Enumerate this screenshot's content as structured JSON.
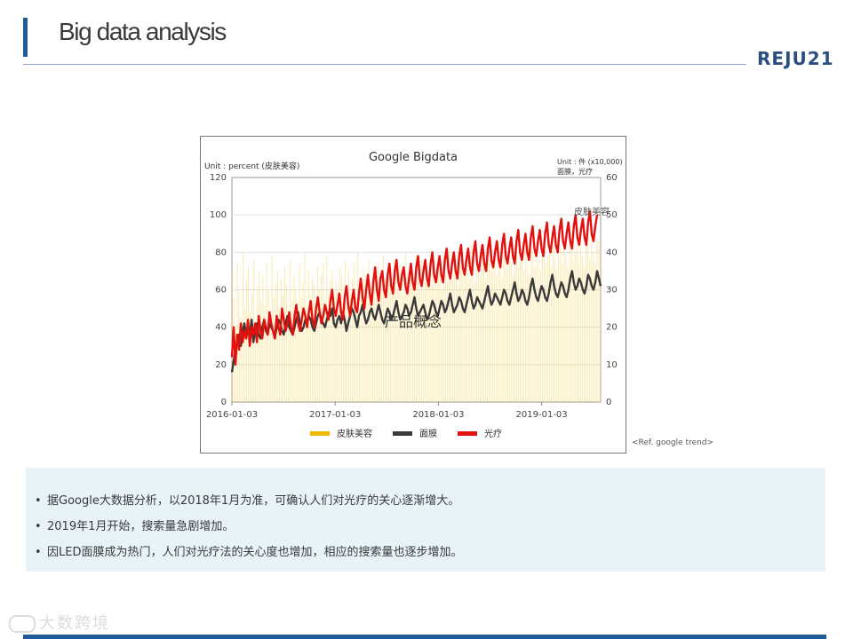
{
  "page": {
    "title": "Big data analysis",
    "logo": "REJU21",
    "ref_note": "<Ref. google trend>",
    "watermark": "大数跨境",
    "overlay_text": "产品概念"
  },
  "bullets": [
    "据Google大数据分析，以2018年1月为准，可确认人们对光疗的关心逐渐增大。",
    "2019年1月开始，搜索量急剧增加。",
    "因LED面膜成为热门，人们对光疗法的关心度也增加，相应的搜索量也逐步增加。"
  ],
  "chart_data": {
    "type": "bar+line",
    "title": "Google Bigdata",
    "left_unit": "Unit : percent (皮肤美容)",
    "right_unit_line1": "Unit : 件 (x10,000)",
    "right_unit_line2": "面膜，光疗",
    "annotation": "皮肤美容",
    "x_ticks": [
      "2016-01-03",
      "2017-01-03",
      "2018-01-03",
      "2019-01-03"
    ],
    "y_left_ticks": [
      "0",
      "20",
      "40",
      "60",
      "80",
      "100",
      "120"
    ],
    "y_right_ticks": [
      "0",
      "10",
      "20",
      "30",
      "40",
      "50",
      "60"
    ],
    "ylim_left": [
      0,
      120
    ],
    "ylim_right": [
      0,
      60
    ],
    "legend": [
      {
        "name": "皮肤美容",
        "color": "#f5b800"
      },
      {
        "name": "面膜",
        "color": "#3a3a3a"
      },
      {
        "name": "光疗",
        "color": "#e31010"
      }
    ],
    "series": [
      {
        "name": "面膜",
        "axis": "right",
        "color": "#3a3a3a",
        "values": [
          8,
          11,
          14,
          16,
          18,
          15,
          19,
          21,
          17,
          20,
          18,
          22,
          16,
          19,
          21,
          18,
          17,
          20,
          22,
          19,
          18,
          21,
          20,
          19,
          17,
          20,
          22,
          21,
          19,
          18,
          21,
          23,
          20,
          19,
          18,
          20,
          22,
          24,
          21,
          19,
          20,
          22,
          21,
          23,
          22,
          20,
          19,
          21,
          23,
          24,
          22,
          21,
          20,
          22,
          24,
          23,
          25,
          21,
          20,
          22,
          23,
          21,
          24,
          22,
          19,
          21,
          23,
          25,
          24,
          22,
          20,
          23,
          24,
          26,
          23,
          21,
          22,
          24,
          25,
          23,
          22,
          24,
          26,
          24,
          22,
          21,
          23,
          25,
          24,
          22,
          23,
          25,
          27,
          24,
          22,
          23,
          24,
          26,
          25,
          23,
          24,
          26,
          28,
          25,
          23,
          24,
          25,
          26,
          24,
          22,
          23,
          25,
          27,
          26,
          24,
          23,
          25,
          27,
          26,
          24,
          25,
          27,
          29,
          26,
          24,
          25,
          26,
          28,
          27,
          25,
          24,
          26,
          28,
          30,
          27,
          25,
          26,
          28,
          27,
          26,
          25,
          27,
          29,
          31,
          28,
          26,
          27,
          29,
          28,
          27,
          26,
          28,
          30,
          29,
          27,
          26,
          28,
          30,
          32,
          29,
          27,
          28,
          30,
          29,
          27,
          26,
          28,
          31,
          33,
          30,
          28,
          27,
          29,
          31,
          30,
          28,
          27,
          29,
          32,
          34,
          31,
          29,
          28,
          30,
          32,
          31,
          29,
          28,
          30,
          33,
          35,
          32,
          30,
          31,
          33,
          32,
          30,
          29,
          31,
          34,
          33,
          31,
          30,
          32,
          35,
          33,
          31
        ]
      },
      {
        "name": "光疗",
        "axis": "right",
        "color": "#e31010",
        "values": [
          12,
          20,
          10,
          18,
          14,
          21,
          16,
          19,
          17,
          22,
          15,
          20,
          18,
          21,
          16,
          23,
          19,
          17,
          22,
          20,
          18,
          24,
          21,
          19,
          17,
          23,
          20,
          18,
          25,
          22,
          19,
          21,
          24,
          20,
          18,
          23,
          26,
          21,
          19,
          22,
          25,
          23,
          20,
          24,
          27,
          22,
          20,
          25,
          28,
          24,
          21,
          23,
          26,
          24,
          22,
          27,
          30,
          25,
          23,
          26,
          29,
          24,
          22,
          28,
          31,
          26,
          23,
          27,
          30,
          25,
          24,
          29,
          33,
          28,
          25,
          30,
          34,
          29,
          26,
          32,
          36,
          30,
          27,
          33,
          35,
          30,
          28,
          34,
          37,
          31,
          29,
          35,
          38,
          32,
          30,
          34,
          36,
          31,
          29,
          33,
          37,
          32,
          30,
          36,
          39,
          33,
          31,
          35,
          38,
          33,
          31,
          37,
          40,
          34,
          32,
          36,
          39,
          34,
          32,
          38,
          41,
          35,
          33,
          37,
          40,
          35,
          33,
          39,
          42,
          36,
          34,
          38,
          41,
          36,
          34,
          40,
          43,
          37,
          35,
          39,
          42,
          37,
          35,
          41,
          44,
          38,
          36,
          40,
          43,
          38,
          36,
          42,
          45,
          39,
          37,
          41,
          44,
          39,
          37,
          43,
          46,
          40,
          38,
          42,
          45,
          40,
          38,
          44,
          47,
          41,
          39,
          43,
          46,
          41,
          39,
          45,
          48,
          42,
          40,
          44,
          47,
          42,
          40,
          46,
          49,
          43,
          41,
          45,
          48,
          43,
          41,
          47,
          50,
          44,
          42,
          46,
          49,
          44,
          42,
          48,
          51,
          45,
          43,
          47,
          50
        ]
      },
      {
        "name": "皮肤美容",
        "axis": "left",
        "color": "#f5b800",
        "style": "thin-bars",
        "values": [
          70,
          55,
          40,
          75,
          60,
          45,
          80,
          50,
          65,
          72,
          48,
          58,
          76,
          42,
          62,
          70,
          54,
          68,
          52,
          74,
          60,
          46,
          78,
          56,
          64,
          70,
          50,
          66,
          58,
          72,
          62,
          48,
          76,
          54,
          68,
          60,
          50,
          74,
          56,
          64,
          80,
          52,
          70,
          58,
          66,
          62,
          50,
          72,
          60,
          68,
          74,
          54,
          78,
          58,
          66,
          70,
          56,
          64,
          60,
          72,
          68,
          52,
          76,
          62,
          70,
          58,
          66,
          74,
          56,
          80,
          64,
          60,
          72,
          66,
          58,
          76,
          62,
          70,
          68,
          56,
          74,
          64,
          60,
          78,
          66,
          58,
          72,
          68,
          62,
          76,
          70,
          60,
          74,
          66,
          58,
          80,
          68,
          62,
          72,
          70,
          64,
          78,
          66,
          60,
          76,
          72,
          64,
          70,
          68,
          62,
          80,
          70,
          66,
          74,
          72,
          60,
          78,
          68,
          64,
          82,
          72,
          66,
          76,
          70,
          62,
          80,
          74,
          68,
          72,
          76,
          66,
          84,
          70,
          64,
          78,
          74,
          68,
          82,
          72,
          66,
          80,
          76,
          70,
          74,
          78,
          68,
          86,
          72,
          66,
          80,
          78,
          70,
          84,
          74,
          68,
          82,
          80,
          72,
          76,
          80,
          70,
          88,
          74,
          68,
          82,
          80,
          72,
          86,
          76,
          70,
          84,
          82,
          74,
          78,
          82,
          72,
          90,
          76,
          70,
          84,
          82,
          74,
          88,
          78,
          72,
          86,
          84,
          76,
          80,
          84,
          74,
          92,
          78,
          72,
          86,
          84,
          76,
          90,
          80,
          74,
          88,
          86,
          78
        ]
      }
    ]
  }
}
